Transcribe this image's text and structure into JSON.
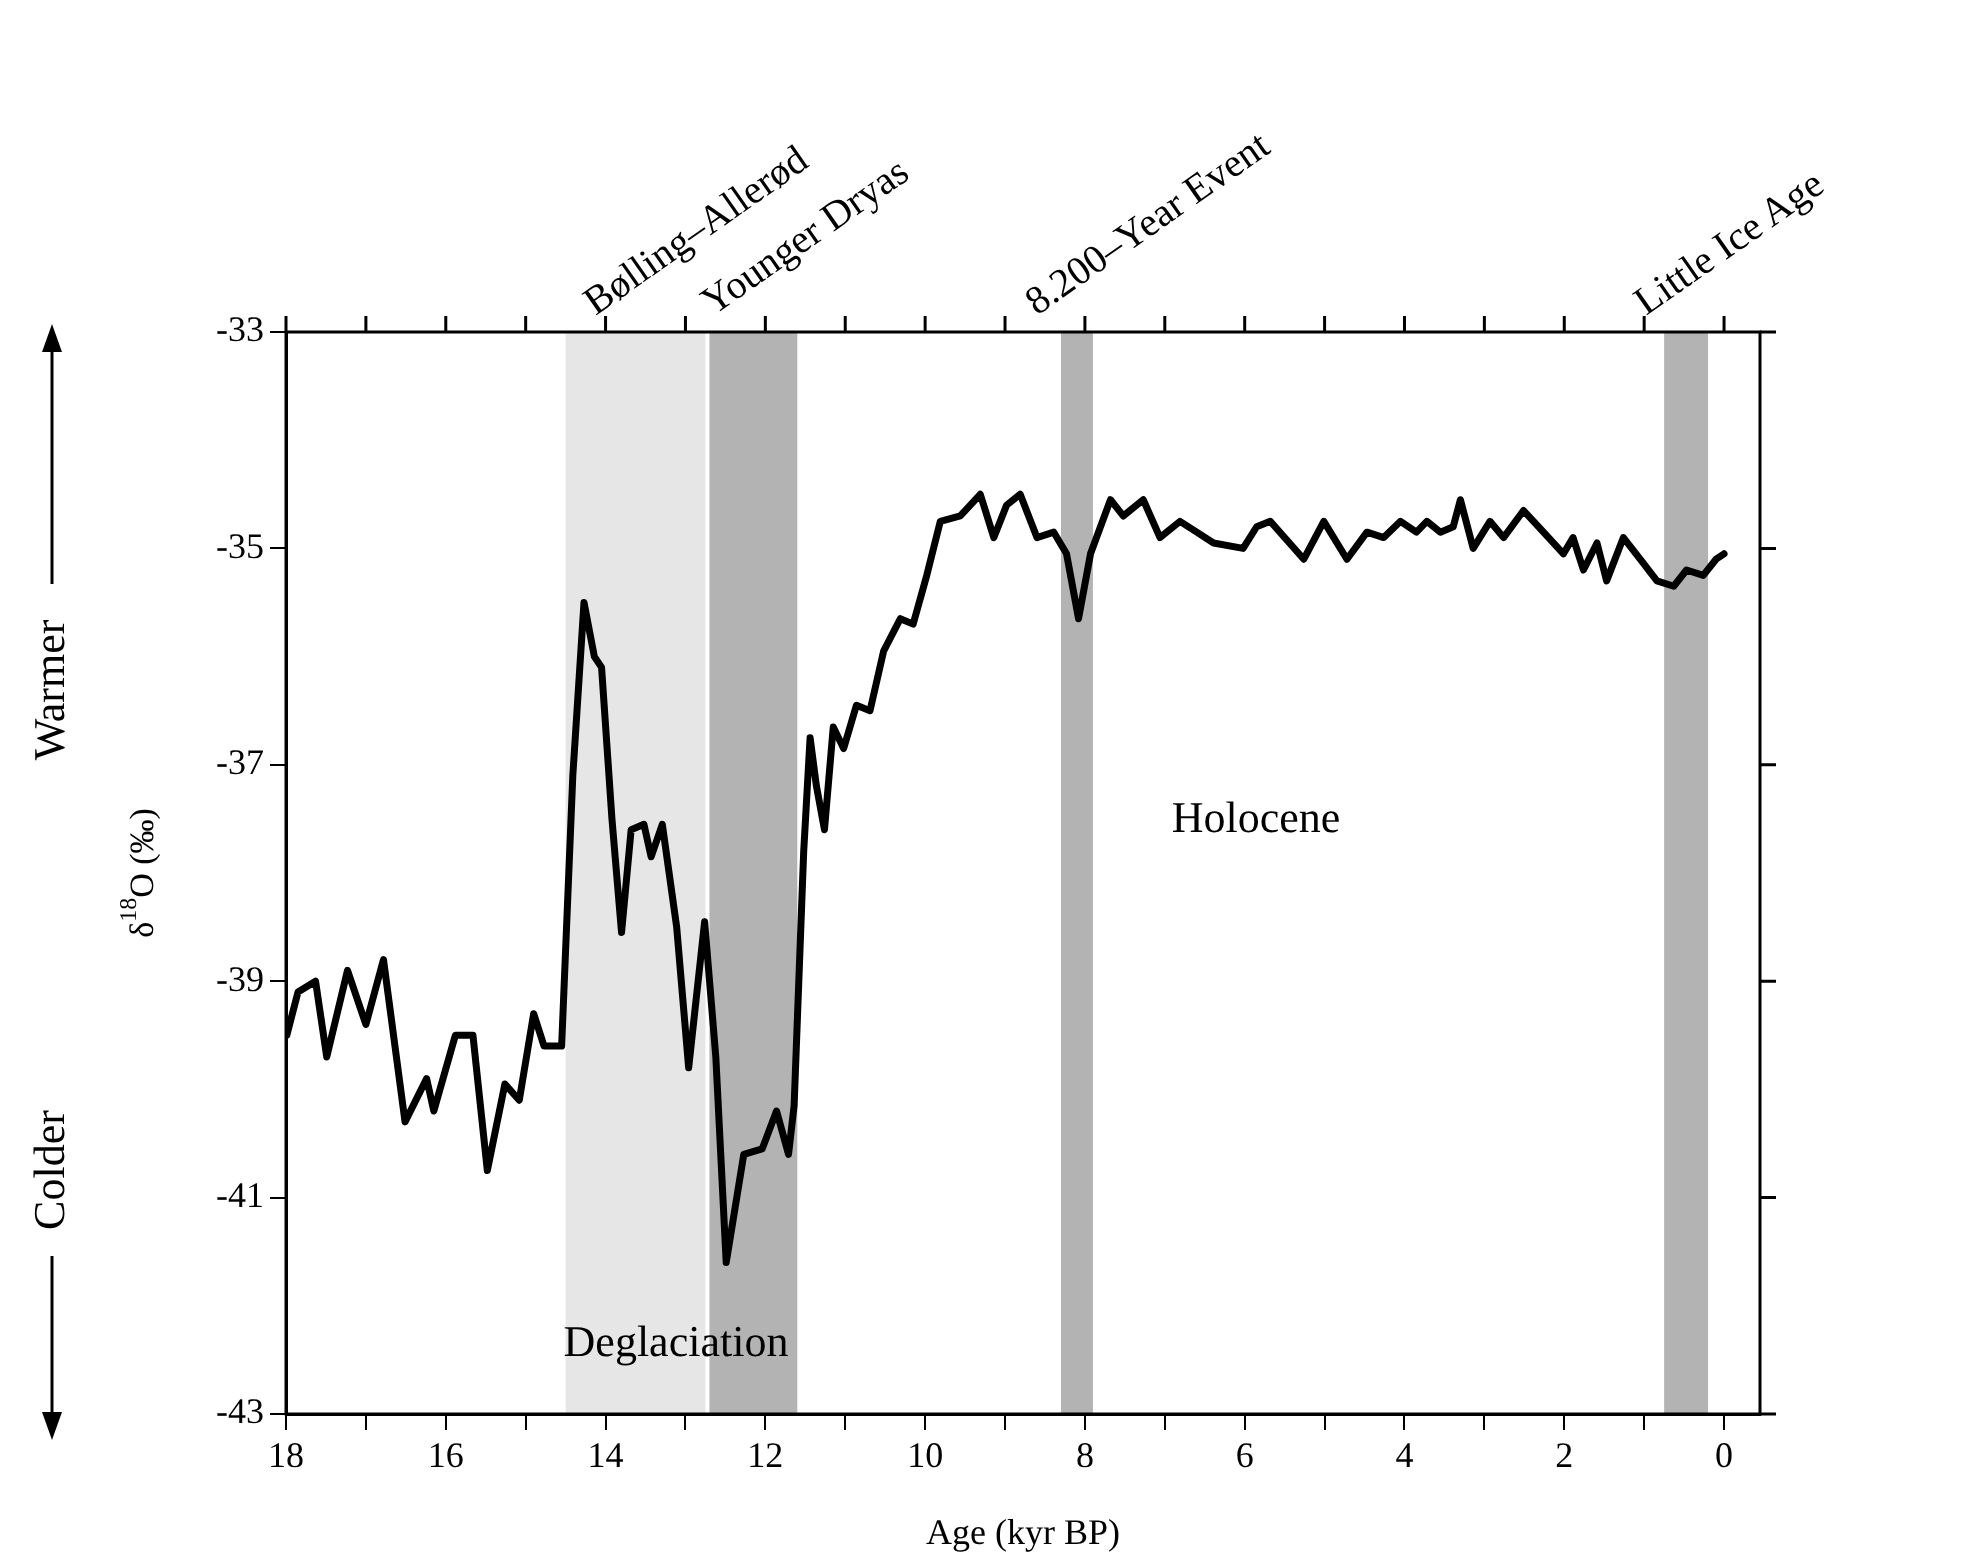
{
  "chart_data": {
    "type": "line",
    "xlabel": "Age (kyr BP)",
    "ylabel": "δ$^{18}$O (‰)",
    "xlim": [
      18,
      -0.45
    ],
    "ylim": [
      -43,
      -33
    ],
    "xticks": [
      18,
      {
        "value": 17,
        "label": null
      },
      16,
      {
        "value": 15,
        "label": null
      },
      14,
      {
        "value": 13,
        "label": null
      },
      12,
      {
        "value": 11,
        "label": null
      },
      10,
      {
        "value": 9,
        "label": null
      },
      8,
      {
        "value": 7,
        "label": null
      },
      6,
      {
        "value": 5,
        "label": null
      },
      4,
      {
        "value": 3,
        "label": null
      },
      2,
      {
        "value": 1,
        "label": null
      },
      0
    ],
    "yticks": [
      -43,
      -41,
      -39,
      -37,
      -35,
      -33
    ],
    "grid": false,
    "legend": false,
    "marker": "none",
    "line_style": "solid",
    "bands": [
      {
        "axis": "x",
        "from": 14.5,
        "to": 12.75,
        "label": "Bølling–Allerød",
        "color": "#e6e6e6"
      },
      {
        "axis": "x",
        "from": 12.7,
        "to": 11.6,
        "label": "Younger Dryas",
        "color": "#b3b3b3"
      },
      {
        "axis": "x",
        "from": 8.3,
        "to": 7.9,
        "label": "8.200–Year Event",
        "color": "#b3b3b3"
      },
      {
        "axis": "x",
        "from": 0.75,
        "to": 0.2,
        "label": "Little Ice Age",
        "color": "#b3b3b3"
      }
    ],
    "annotations": [
      "Warmer",
      "Colder",
      "Holocene",
      "Deglaciation"
    ],
    "series": [
      {
        "color": "#000000",
        "x": [
          17.99,
          17.85,
          17.63,
          17.49,
          17.23,
          17.0,
          16.78,
          16.51,
          16.24,
          16.15,
          15.88,
          15.66,
          15.48,
          15.26,
          15.08,
          14.9,
          14.77,
          14.55,
          14.41,
          14.27,
          14.14,
          14.05,
          13.92,
          13.8,
          13.68,
          13.52,
          13.43,
          13.29,
          13.11,
          12.96,
          12.76,
          12.62,
          12.49,
          12.27,
          12.04,
          11.86,
          11.71,
          11.64,
          11.52,
          11.44,
          11.36,
          11.26,
          11.15,
          11.02,
          10.86,
          10.69,
          10.52,
          10.31,
          10.15,
          9.98,
          9.81,
          9.56,
          9.31,
          9.14,
          8.98,
          8.81,
          8.6,
          8.39,
          8.23,
          8.08,
          7.93,
          7.68,
          7.52,
          7.27,
          7.06,
          6.81,
          6.6,
          6.39,
          6.02,
          5.85,
          5.68,
          5.26,
          5.01,
          4.72,
          4.47,
          4.26,
          4.05,
          3.85,
          3.72,
          3.55,
          3.39,
          3.3,
          3.14,
          2.93,
          2.76,
          2.51,
          2.26,
          2.01,
          1.89,
          1.76,
          1.59,
          1.47,
          1.26,
          1.05,
          0.84,
          0.63,
          0.47,
          0.26,
          0.1,
          0.0
        ],
        "values": [
          -39.5,
          -39.1,
          -39.0,
          -39.7,
          -38.9,
          -39.4,
          -38.8,
          -40.3,
          -39.9,
          -40.2,
          -39.5,
          -39.5,
          -40.75,
          -39.95,
          -40.1,
          -39.3,
          -39.6,
          -39.6,
          -37.1,
          -35.5,
          -36.0,
          -36.1,
          -37.5,
          -38.55,
          -37.6,
          -37.55,
          -37.85,
          -37.55,
          -38.5,
          -39.8,
          -38.45,
          -39.7,
          -41.6,
          -40.6,
          -40.55,
          -40.2,
          -40.6,
          -40.15,
          -37.8,
          -36.75,
          -37.2,
          -37.6,
          -36.65,
          -36.85,
          -36.45,
          -36.5,
          -35.95,
          -35.65,
          -35.7,
          -35.25,
          -34.75,
          -34.7,
          -34.5,
          -34.9,
          -34.6,
          -34.5,
          -34.9,
          -34.85,
          -35.05,
          -35.65,
          -35.05,
          -34.55,
          -34.7,
          -34.55,
          -34.9,
          -34.75,
          -34.85,
          -34.95,
          -35.0,
          -34.8,
          -34.75,
          -35.1,
          -34.75,
          -35.1,
          -34.85,
          -34.9,
          -34.75,
          -34.85,
          -34.75,
          -34.85,
          -34.8,
          -34.55,
          -35.0,
          -34.75,
          -34.9,
          -34.65,
          -34.85,
          -35.05,
          -34.9,
          -35.2,
          -34.95,
          -35.3,
          -34.9,
          -35.1,
          -35.3,
          -35.35,
          -35.2,
          -35.25,
          -35.1,
          -35.05
        ]
      }
    ]
  }
}
